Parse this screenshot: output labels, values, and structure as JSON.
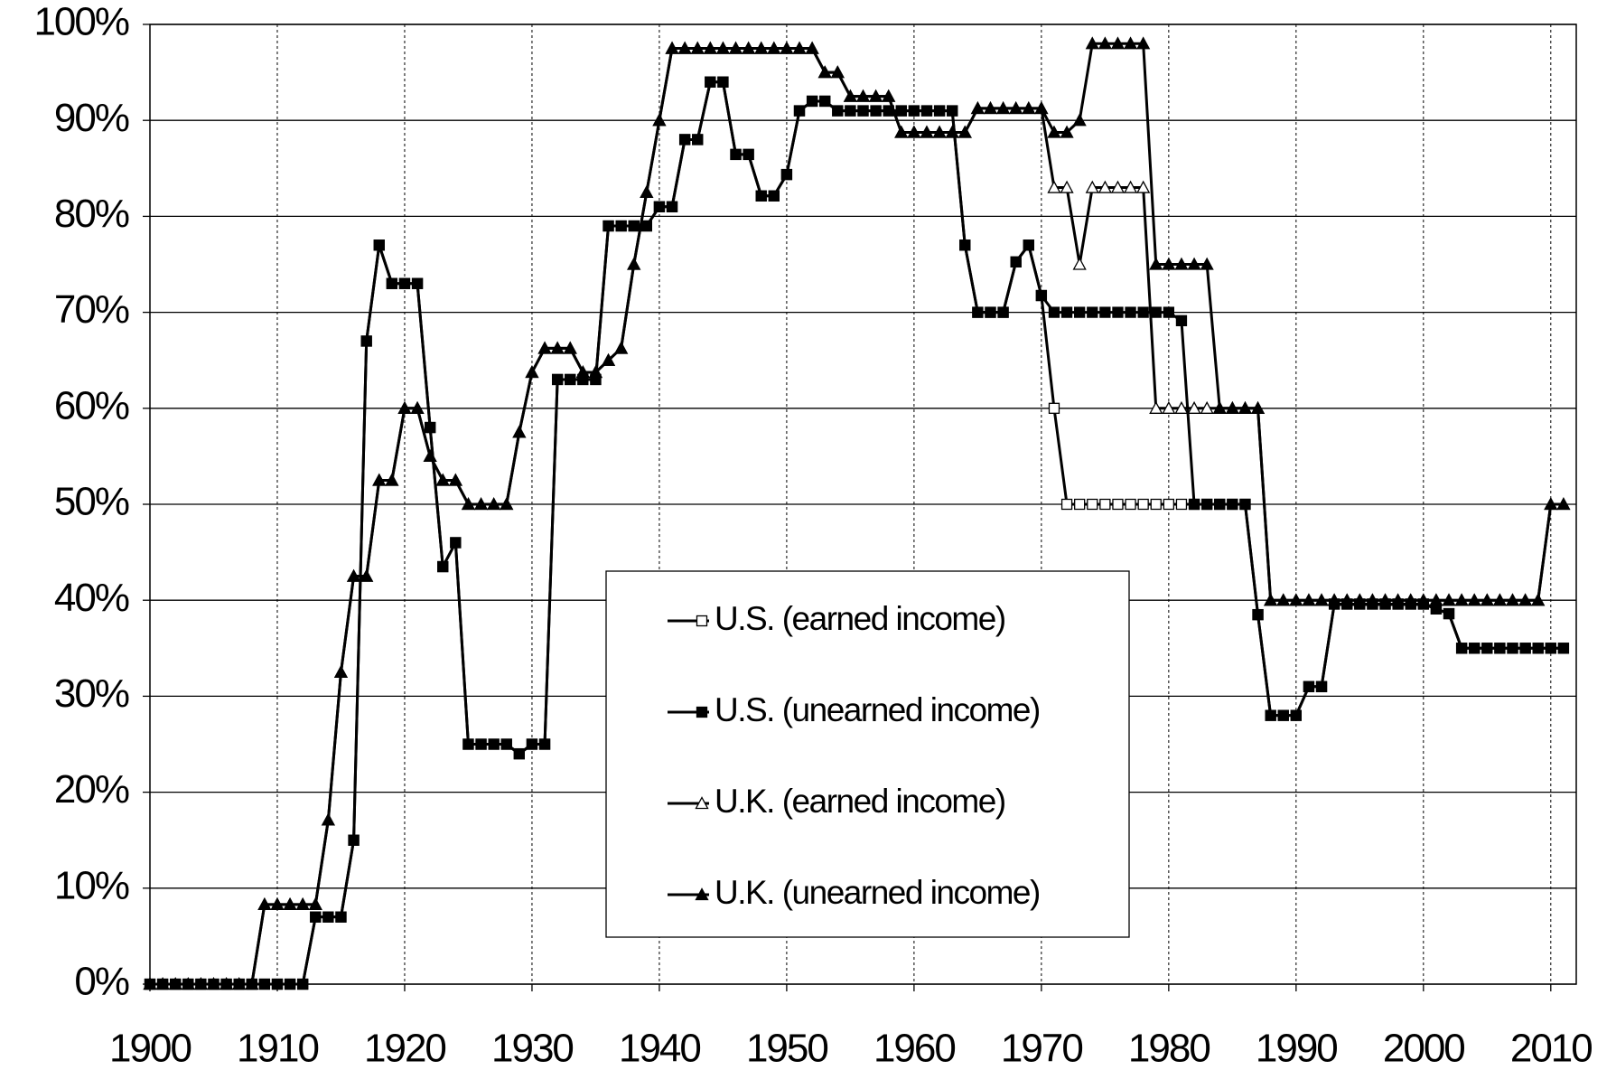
{
  "chart_data": {
    "type": "line",
    "x": [
      1900,
      1901,
      1902,
      1903,
      1904,
      1905,
      1906,
      1907,
      1908,
      1909,
      1910,
      1911,
      1912,
      1913,
      1914,
      1915,
      1916,
      1917,
      1918,
      1919,
      1920,
      1921,
      1922,
      1923,
      1924,
      1925,
      1926,
      1927,
      1928,
      1929,
      1930,
      1931,
      1932,
      1933,
      1934,
      1935,
      1936,
      1937,
      1938,
      1939,
      1940,
      1941,
      1942,
      1943,
      1944,
      1945,
      1946,
      1947,
      1948,
      1949,
      1950,
      1951,
      1952,
      1953,
      1954,
      1955,
      1956,
      1957,
      1958,
      1959,
      1960,
      1961,
      1962,
      1963,
      1964,
      1965,
      1966,
      1967,
      1968,
      1969,
      1970,
      1971,
      1972,
      1973,
      1974,
      1975,
      1976,
      1977,
      1978,
      1979,
      1980,
      1981,
      1982,
      1983,
      1984,
      1985,
      1986,
      1987,
      1988,
      1989,
      1990,
      1991,
      1992,
      1993,
      1994,
      1995,
      1996,
      1997,
      1998,
      1999,
      2000,
      2001,
      2002,
      2003,
      2004,
      2005,
      2006,
      2007,
      2008,
      2009,
      2010,
      2011
    ],
    "xlim": [
      1900,
      2012
    ],
    "xticks": [
      1900,
      1910,
      1920,
      1930,
      1940,
      1950,
      1960,
      1970,
      1980,
      1990,
      2000,
      2010
    ],
    "ylim": [
      0,
      100
    ],
    "yticks": [
      {
        "value": 0,
        "label": "0%"
      },
      {
        "value": 10,
        "label": "10%"
      },
      {
        "value": 20,
        "label": "20%"
      },
      {
        "value": 30,
        "label": "30%"
      },
      {
        "value": 40,
        "label": "40%"
      },
      {
        "value": 50,
        "label": "50%"
      },
      {
        "value": 60,
        "label": "60%"
      },
      {
        "value": 70,
        "label": "70%"
      },
      {
        "value": 80,
        "label": "80%"
      },
      {
        "value": 90,
        "label": "90%"
      },
      {
        "value": 100,
        "label": "100%"
      }
    ],
    "grid": true,
    "legend": "lower center",
    "series": [
      {
        "name": "U.S. (earned income)",
        "color": "#000000",
        "marker": "square",
        "marker_fill": "#ffffff",
        "values": [
          0,
          0,
          0,
          0,
          0,
          0,
          0,
          0,
          0,
          0,
          0,
          0,
          0,
          7,
          7,
          7,
          15,
          67,
          77,
          73,
          73,
          73,
          58,
          43.5,
          46,
          25,
          25,
          25,
          25,
          24,
          25,
          25,
          63,
          63,
          63,
          63,
          79,
          79,
          79,
          79,
          81,
          81,
          88,
          88,
          94,
          94,
          86.45,
          86.45,
          82.13,
          82.13,
          84.36,
          91,
          92,
          92,
          91,
          91,
          91,
          91,
          91,
          91,
          91,
          91,
          91,
          91,
          77,
          70,
          70,
          70,
          75.25,
          77,
          71.75,
          60,
          50,
          50,
          50,
          50,
          50,
          50,
          50,
          50,
          50,
          50,
          50,
          50,
          50,
          50,
          50,
          38.5,
          28,
          28,
          28,
          31,
          31,
          39.6,
          39.6,
          39.6,
          39.6,
          39.6,
          39.6,
          39.6,
          39.6,
          39.1,
          38.6,
          35,
          35,
          35,
          35,
          35,
          35,
          35,
          35,
          35
        ]
      },
      {
        "name": "U.S. (unearned income)",
        "color": "#000000",
        "marker": "square",
        "marker_fill": "#000000",
        "values": [
          0,
          0,
          0,
          0,
          0,
          0,
          0,
          0,
          0,
          0,
          0,
          0,
          0,
          7,
          7,
          7,
          15,
          67,
          77,
          73,
          73,
          73,
          58,
          43.5,
          46,
          25,
          25,
          25,
          25,
          24,
          25,
          25,
          63,
          63,
          63,
          63,
          79,
          79,
          79,
          79,
          81,
          81,
          88,
          88,
          94,
          94,
          86.45,
          86.45,
          82.13,
          82.13,
          84.36,
          91,
          92,
          92,
          91,
          91,
          91,
          91,
          91,
          91,
          91,
          91,
          91,
          91,
          77,
          70,
          70,
          70,
          75.25,
          77,
          71.75,
          70,
          70,
          70,
          70,
          70,
          70,
          70,
          70,
          70,
          70,
          69.13,
          50,
          50,
          50,
          50,
          50,
          38.5,
          28,
          28,
          28,
          31,
          31,
          39.6,
          39.6,
          39.6,
          39.6,
          39.6,
          39.6,
          39.6,
          39.6,
          39.1,
          38.6,
          35,
          35,
          35,
          35,
          35,
          35,
          35,
          35,
          35
        ]
      },
      {
        "name": "U.K. (earned income)",
        "color": "#000000",
        "marker": "triangle",
        "marker_fill": "#ffffff",
        "values": [
          0,
          0,
          0,
          0,
          0,
          0,
          0,
          0,
          0,
          8.3,
          8.3,
          8.3,
          8.3,
          8.3,
          17.1,
          32.5,
          42.5,
          42.5,
          52.5,
          52.5,
          60,
          60,
          55,
          52.5,
          52.5,
          50,
          50,
          50,
          50,
          57.5,
          63.75,
          66.25,
          66.25,
          66.25,
          63.75,
          63.75,
          65,
          66.25,
          75,
          82.5,
          90,
          97.5,
          97.5,
          97.5,
          97.5,
          97.5,
          97.5,
          97.5,
          97.5,
          97.5,
          97.5,
          97.5,
          97.5,
          95,
          95,
          92.5,
          92.5,
          92.5,
          92.5,
          88.75,
          88.75,
          88.75,
          88.75,
          88.75,
          88.75,
          91.25,
          91.25,
          91.25,
          91.25,
          91.25,
          91.25,
          83,
          83,
          75,
          83,
          83,
          83,
          83,
          83,
          60,
          60,
          60,
          60,
          60,
          60,
          60,
          60,
          60,
          40,
          40,
          40,
          40,
          40,
          40,
          40,
          40,
          40,
          40,
          40,
          40,
          40,
          40,
          40,
          40,
          40,
          40,
          40,
          40,
          40,
          40,
          50,
          50
        ]
      },
      {
        "name": "U.K. (unearned income)",
        "color": "#000000",
        "marker": "triangle",
        "marker_fill": "#000000",
        "values": [
          0,
          0,
          0,
          0,
          0,
          0,
          0,
          0,
          0,
          8.3,
          8.3,
          8.3,
          8.3,
          8.3,
          17.1,
          32.5,
          42.5,
          42.5,
          52.5,
          52.5,
          60,
          60,
          55,
          52.5,
          52.5,
          50,
          50,
          50,
          50,
          57.5,
          63.75,
          66.25,
          66.25,
          66.25,
          63.75,
          63.75,
          65,
          66.25,
          75,
          82.5,
          90,
          97.5,
          97.5,
          97.5,
          97.5,
          97.5,
          97.5,
          97.5,
          97.5,
          97.5,
          97.5,
          97.5,
          97.5,
          95,
          95,
          92.5,
          92.5,
          92.5,
          92.5,
          88.75,
          88.75,
          88.75,
          88.75,
          88.75,
          88.75,
          91.25,
          91.25,
          91.25,
          91.25,
          91.25,
          91.25,
          88.75,
          88.75,
          90,
          98,
          98,
          98,
          98,
          98,
          75,
          75,
          75,
          75,
          75,
          60,
          60,
          60,
          60,
          40,
          40,
          40,
          40,
          40,
          40,
          40,
          40,
          40,
          40,
          40,
          40,
          40,
          40,
          40,
          40,
          40,
          40,
          40,
          40,
          40,
          40,
          50,
          50
        ]
      }
    ]
  }
}
